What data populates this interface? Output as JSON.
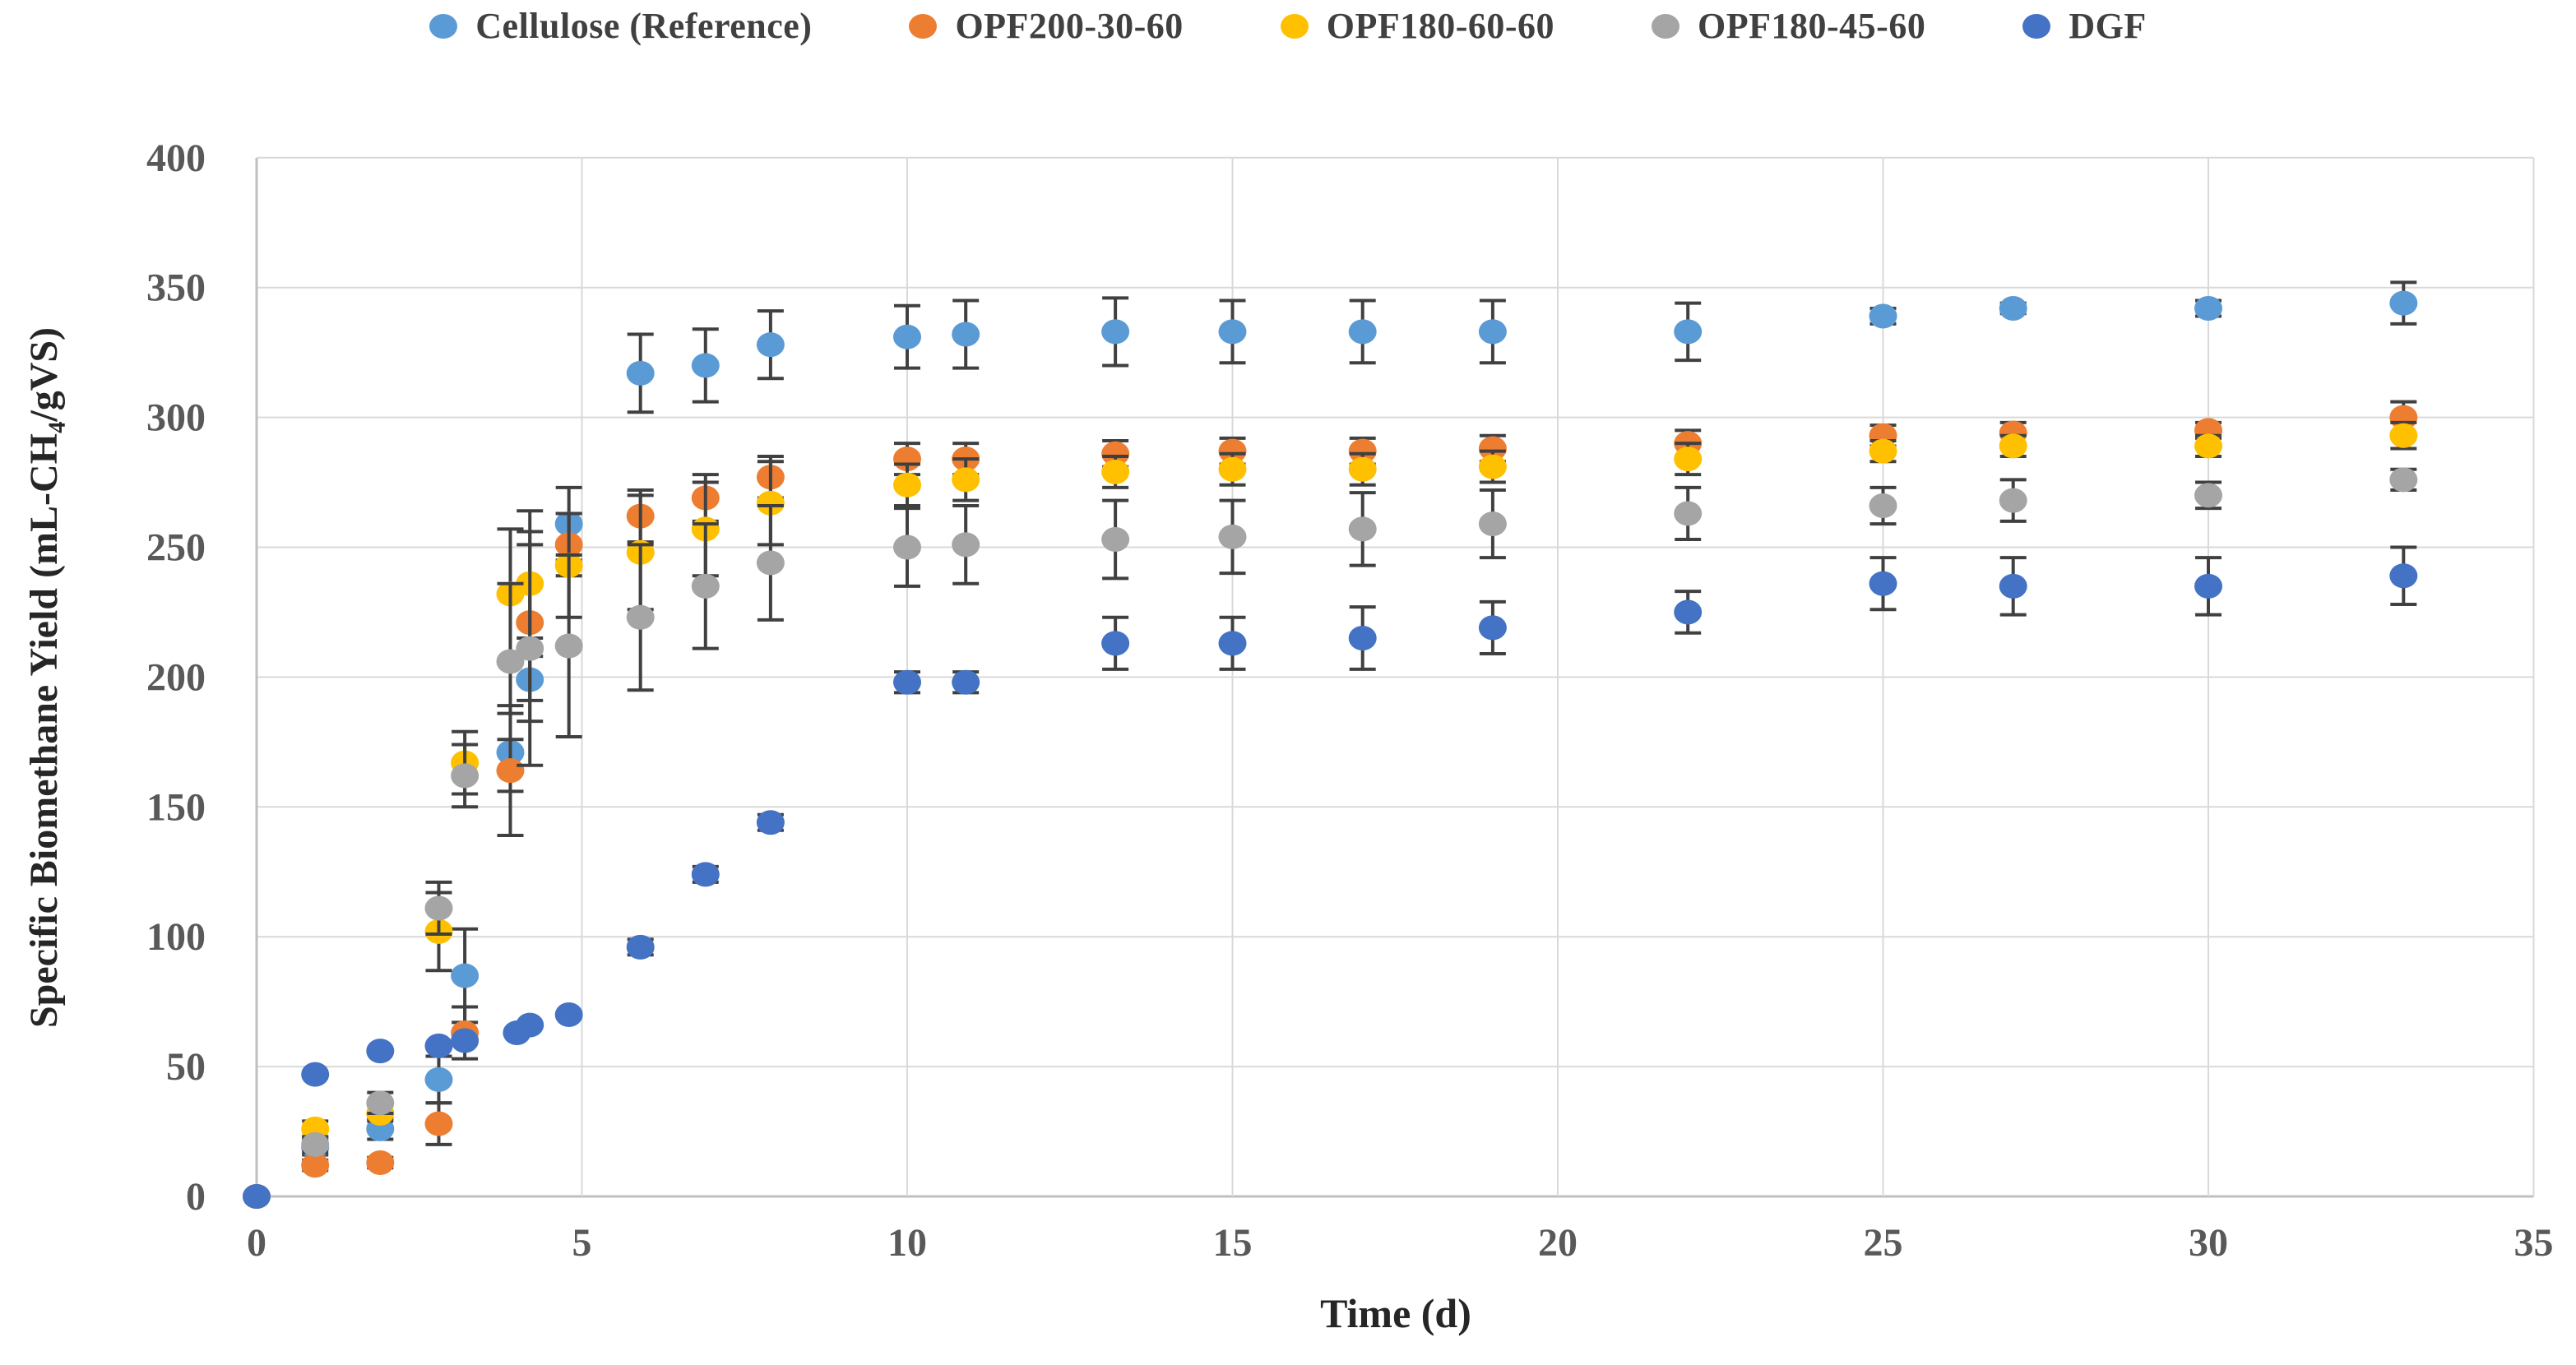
{
  "page": {
    "background": "#FFFFFF"
  },
  "chart_data": {
    "type": "scatter",
    "title": "",
    "xlabel": "Time (d)",
    "ylabel": "Specific Biomethane Yield (mL-CH₄/gVS)",
    "xlim": [
      0,
      35
    ],
    "ylim": [
      0,
      400
    ],
    "x_ticks": [
      0,
      5,
      10,
      15,
      20,
      25,
      30,
      35
    ],
    "y_ticks": [
      0,
      50,
      100,
      150,
      200,
      250,
      300,
      350,
      400
    ],
    "grid": true,
    "legend_position": "top-center",
    "colors": {
      "grid": "#D9D9D9",
      "axis": "#BFBFBF",
      "tick_text": "#595959",
      "title_text": "#262626",
      "error_bar": "#404040",
      "cellulose": "#5B9BD5",
      "opf200_30_60": "#ED7D31",
      "opf180_60_60": "#FFC000",
      "opf180_45_60": "#A5A5A5",
      "dgf": "#4472C4"
    },
    "series": [
      {
        "name": "Cellulose (Reference)",
        "color": "#5B9BD5",
        "x": [
          0,
          0.9,
          1.9,
          2.8,
          3.2,
          3.9,
          4.2,
          4.8,
          5.9,
          6.9,
          7.9,
          10,
          10.9,
          13.2,
          15,
          17,
          19,
          22,
          25,
          27,
          30,
          33
        ],
        "y": [
          0,
          19,
          26,
          45,
          85,
          171,
          199,
          259,
          317,
          320,
          328,
          331,
          332,
          333,
          333,
          333,
          333,
          333,
          339,
          342,
          342,
          344
        ],
        "err": [
          0,
          3,
          4,
          9,
          18,
          15,
          16,
          14,
          15,
          14,
          13,
          12,
          13,
          13,
          12,
          12,
          12,
          11,
          3,
          2,
          3,
          8
        ]
      },
      {
        "name": "OPF200-30-60",
        "color": "#ED7D31",
        "x": [
          0,
          0.9,
          1.9,
          2.8,
          3.2,
          3.9,
          4.2,
          4.8,
          5.9,
          6.9,
          7.9,
          10,
          10.9,
          13.2,
          15,
          17,
          19,
          22,
          25,
          27,
          30,
          33
        ],
        "y": [
          0,
          12,
          13,
          28,
          63,
          164,
          221,
          251,
          262,
          269,
          277,
          284,
          284,
          286,
          287,
          287,
          288,
          290,
          293,
          294,
          295,
          300
        ],
        "err": [
          0,
          2,
          2,
          8,
          10,
          25,
          30,
          12,
          10,
          9,
          8,
          6,
          6,
          5,
          5,
          5,
          5,
          5,
          4,
          4,
          3,
          6
        ]
      },
      {
        "name": "OPF180-60-60",
        "color": "#FFC000",
        "x": [
          0,
          0.9,
          1.9,
          2.8,
          3.2,
          3.9,
          4.2,
          4.8,
          5.9,
          6.9,
          7.9,
          10,
          10.9,
          13.2,
          15,
          17,
          19,
          22,
          25,
          27,
          30,
          33
        ],
        "y": [
          0,
          26,
          32,
          102,
          167,
          232,
          236,
          243,
          248,
          257,
          267,
          274,
          276,
          279,
          280,
          280,
          281,
          284,
          287,
          289,
          289,
          293
        ],
        "err": [
          0,
          3,
          3,
          15,
          12,
          25,
          28,
          20,
          22,
          18,
          16,
          8,
          8,
          6,
          6,
          6,
          6,
          6,
          4,
          4,
          4,
          5
        ]
      },
      {
        "name": "OPF180-45-60",
        "color": "#A5A5A5",
        "x": [
          0,
          0.9,
          1.9,
          2.8,
          3.2,
          3.9,
          4.2,
          4.8,
          5.9,
          6.9,
          7.9,
          10,
          10.9,
          13.2,
          15,
          17,
          19,
          22,
          25,
          27,
          30,
          33
        ],
        "y": [
          0,
          20,
          36,
          111,
          162,
          206,
          211,
          212,
          223,
          235,
          244,
          250,
          251,
          253,
          254,
          257,
          259,
          263,
          266,
          268,
          270,
          276
        ],
        "err": [
          0,
          3,
          4,
          10,
          12,
          30,
          45,
          35,
          28,
          24,
          22,
          15,
          15,
          15,
          14,
          14,
          13,
          10,
          7,
          8,
          5,
          4
        ]
      },
      {
        "name": "DGF",
        "color": "#4472C4",
        "x": [
          0,
          0.9,
          1.9,
          2.8,
          3.2,
          4.0,
          4.2,
          4.8,
          5.9,
          6.9,
          7.9,
          10,
          10.9,
          13.2,
          15,
          17,
          19,
          22,
          25,
          27,
          30,
          33
        ],
        "y": [
          0,
          47,
          56,
          58,
          60,
          63,
          66,
          70,
          96,
          124,
          144,
          198,
          198,
          213,
          213,
          215,
          219,
          225,
          236,
          235,
          235,
          239
        ],
        "err": [
          0,
          0,
          0,
          0,
          0,
          0,
          0,
          0,
          3,
          3,
          3,
          4,
          4,
          10,
          10,
          12,
          10,
          8,
          10,
          11,
          11,
          11
        ]
      }
    ]
  }
}
